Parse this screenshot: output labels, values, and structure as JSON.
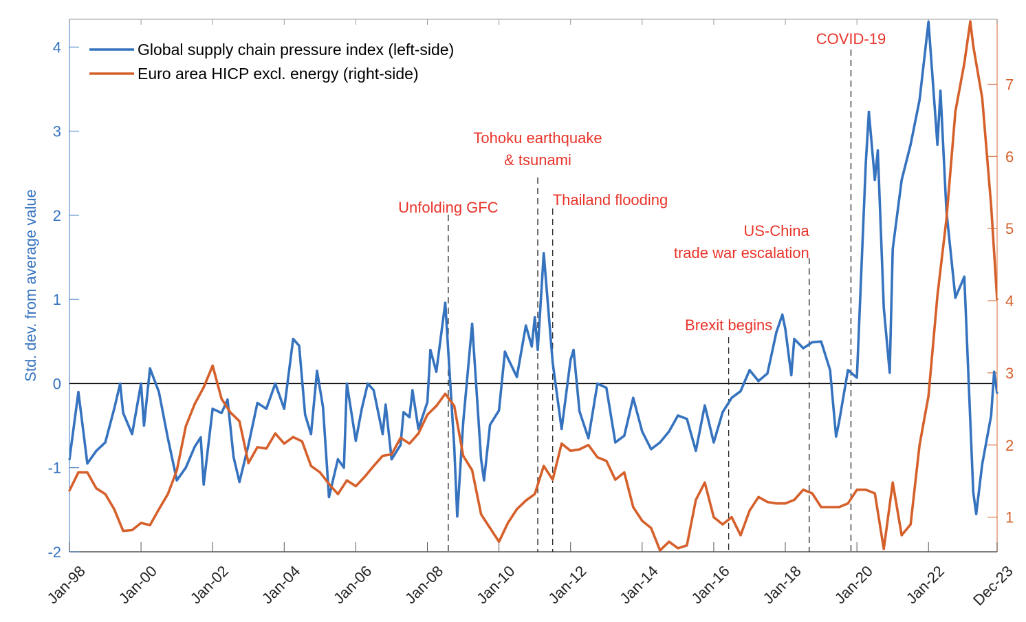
{
  "chart_data": {
    "type": "line",
    "title": "",
    "xlabel": "",
    "ylabel_left": "Std. dev. from average value",
    "ylabel_right": "",
    "ylim_left": [
      -2,
      4.33
    ],
    "ylim_right": [
      0.52,
      7.9
    ],
    "xlim": [
      "1998-01",
      "2023-12"
    ],
    "grid": false,
    "legend_position": "top-left",
    "zero_line": true,
    "x_tick_labels": [
      "Jan-98",
      "Jan-00",
      "Jan-02",
      "Jan-04",
      "Jan-06",
      "Jan-08",
      "Jan-10",
      "Jan-12",
      "Jan-14",
      "Jan-16",
      "Jan-18",
      "Jan-20",
      "Jan-22",
      "Dec-23"
    ],
    "x_ticks": [
      "1998-01",
      "2000-01",
      "2002-01",
      "2004-01",
      "2006-01",
      "2008-01",
      "2010-01",
      "2012-01",
      "2014-01",
      "2016-01",
      "2018-01",
      "2020-01",
      "2022-01",
      "2023-12"
    ],
    "y_ticks_left": [
      -2,
      -1,
      0,
      1,
      2,
      3,
      4
    ],
    "y_ticks_right": [
      1,
      2,
      3,
      4,
      5,
      6,
      7
    ],
    "colors": {
      "left_series": "#3673bf",
      "right_series": "#d5602b",
      "annotation": "#e8342a",
      "axis": "#555555"
    },
    "series": [
      {
        "name": "Global supply chain pressure index (left-side)",
        "axis": "left",
        "points": [
          [
            "1998-01",
            -0.9
          ],
          [
            "1998-04",
            -0.1
          ],
          [
            "1998-07",
            -0.95
          ],
          [
            "1998-10",
            -0.8
          ],
          [
            "1999-01",
            -0.7
          ],
          [
            "1999-04",
            -0.3
          ],
          [
            "1999-06",
            0.0
          ],
          [
            "1999-07",
            -0.35
          ],
          [
            "1999-10",
            -0.6
          ],
          [
            "2000-01",
            0.0
          ],
          [
            "2000-02",
            -0.5
          ],
          [
            "2000-04",
            0.18
          ],
          [
            "2000-07",
            -0.1
          ],
          [
            "2000-10",
            -0.65
          ],
          [
            "2001-01",
            -1.15
          ],
          [
            "2001-04",
            -1.0
          ],
          [
            "2001-07",
            -0.75
          ],
          [
            "2001-09",
            -0.64
          ],
          [
            "2001-10",
            -1.2
          ],
          [
            "2002-01",
            -0.3
          ],
          [
            "2002-04",
            -0.35
          ],
          [
            "2002-06",
            -0.19
          ],
          [
            "2002-08",
            -0.87
          ],
          [
            "2002-10",
            -1.17
          ],
          [
            "2003-01",
            -0.73
          ],
          [
            "2003-04",
            -0.23
          ],
          [
            "2003-07",
            -0.3
          ],
          [
            "2003-10",
            0.0
          ],
          [
            "2004-01",
            -0.3
          ],
          [
            "2004-04",
            0.53
          ],
          [
            "2004-06",
            0.45
          ],
          [
            "2004-08",
            -0.37
          ],
          [
            "2004-10",
            -0.6
          ],
          [
            "2004-12",
            0.15
          ],
          [
            "2005-02",
            -0.28
          ],
          [
            "2005-04",
            -1.35
          ],
          [
            "2005-07",
            -0.9
          ],
          [
            "2005-09",
            -1.0
          ],
          [
            "2005-10",
            0.0
          ],
          [
            "2006-01",
            -0.68
          ],
          [
            "2006-03",
            -0.3
          ],
          [
            "2006-05",
            0.0
          ],
          [
            "2006-07",
            -0.08
          ],
          [
            "2006-10",
            -0.6
          ],
          [
            "2006-11",
            -0.25
          ],
          [
            "2007-01",
            -0.9
          ],
          [
            "2007-04",
            -0.73
          ],
          [
            "2007-05",
            -0.34
          ],
          [
            "2007-07",
            -0.4
          ],
          [
            "2007-08",
            -0.08
          ],
          [
            "2007-10",
            -0.54
          ],
          [
            "2008-01",
            -0.22
          ],
          [
            "2008-02",
            0.4
          ],
          [
            "2008-04",
            0.14
          ],
          [
            "2008-07",
            0.96
          ],
          [
            "2008-10",
            -0.76
          ],
          [
            "2008-11",
            -1.58
          ],
          [
            "2009-01",
            -0.46
          ],
          [
            "2009-04",
            0.71
          ],
          [
            "2009-07",
            -0.9
          ],
          [
            "2009-08",
            -1.15
          ],
          [
            "2009-10",
            -0.49
          ],
          [
            "2010-01",
            -0.32
          ],
          [
            "2010-03",
            0.38
          ],
          [
            "2010-04",
            0.3
          ],
          [
            "2010-07",
            0.08
          ],
          [
            "2010-10",
            0.69
          ],
          [
            "2010-12",
            0.44
          ],
          [
            "2011-01",
            0.79
          ],
          [
            "2011-02",
            0.4
          ],
          [
            "2011-04",
            1.55
          ],
          [
            "2011-07",
            0.25
          ],
          [
            "2011-10",
            -0.54
          ],
          [
            "2012-01",
            0.28
          ],
          [
            "2012-02",
            0.4
          ],
          [
            "2012-04",
            -0.33
          ],
          [
            "2012-07",
            -0.65
          ],
          [
            "2012-10",
            0.0
          ],
          [
            "2013-01",
            -0.05
          ],
          [
            "2013-04",
            -0.7
          ],
          [
            "2013-07",
            -0.62
          ],
          [
            "2013-10",
            -0.17
          ],
          [
            "2014-01",
            -0.57
          ],
          [
            "2014-04",
            -0.78
          ],
          [
            "2014-07",
            -0.7
          ],
          [
            "2014-10",
            -0.57
          ],
          [
            "2015-01",
            -0.38
          ],
          [
            "2015-04",
            -0.42
          ],
          [
            "2015-07",
            -0.8
          ],
          [
            "2015-10",
            -0.26
          ],
          [
            "2016-01",
            -0.7
          ],
          [
            "2016-04",
            -0.34
          ],
          [
            "2016-07",
            -0.17
          ],
          [
            "2016-10",
            -0.09
          ],
          [
            "2017-01",
            0.16
          ],
          [
            "2017-04",
            0.03
          ],
          [
            "2017-07",
            0.12
          ],
          [
            "2017-10",
            0.61
          ],
          [
            "2017-12",
            0.82
          ],
          [
            "2018-01",
            0.65
          ],
          [
            "2018-03",
            0.1
          ],
          [
            "2018-04",
            0.53
          ],
          [
            "2018-07",
            0.42
          ],
          [
            "2018-10",
            0.49
          ],
          [
            "2019-01",
            0.5
          ],
          [
            "2019-04",
            0.16
          ],
          [
            "2019-06",
            -0.63
          ],
          [
            "2019-07",
            -0.46
          ],
          [
            "2019-10",
            0.16
          ],
          [
            "2020-01",
            0.07
          ],
          [
            "2020-04",
            2.63
          ],
          [
            "2020-05",
            3.23
          ],
          [
            "2020-07",
            2.42
          ],
          [
            "2020-08",
            2.77
          ],
          [
            "2020-10",
            0.9
          ],
          [
            "2020-12",
            0.13
          ],
          [
            "2021-01",
            1.6
          ],
          [
            "2021-04",
            2.42
          ],
          [
            "2021-07",
            2.84
          ],
          [
            "2021-10",
            3.37
          ],
          [
            "2022-01",
            4.3
          ],
          [
            "2022-04",
            2.84
          ],
          [
            "2022-05",
            3.48
          ],
          [
            "2022-07",
            2.05
          ],
          [
            "2022-10",
            1.02
          ],
          [
            "2023-01",
            1.27
          ],
          [
            "2023-04",
            -1.29
          ],
          [
            "2023-05",
            -1.55
          ],
          [
            "2023-07",
            -0.96
          ],
          [
            "2023-10",
            -0.38
          ],
          [
            "2023-11",
            0.14
          ],
          [
            "2023-12",
            -0.11
          ]
        ]
      },
      {
        "name": "Euro area HICP excl. energy (right-side)",
        "axis": "right",
        "points": [
          [
            "1998-01",
            1.37
          ],
          [
            "1998-04",
            1.62
          ],
          [
            "1998-07",
            1.62
          ],
          [
            "1998-10",
            1.4
          ],
          [
            "1999-01",
            1.32
          ],
          [
            "1999-04",
            1.11
          ],
          [
            "1999-07",
            0.81
          ],
          [
            "1999-10",
            0.82
          ],
          [
            "2000-01",
            0.92
          ],
          [
            "2000-04",
            0.89
          ],
          [
            "2000-07",
            1.11
          ],
          [
            "2000-10",
            1.32
          ],
          [
            "2001-01",
            1.65
          ],
          [
            "2001-04",
            2.26
          ],
          [
            "2001-07",
            2.57
          ],
          [
            "2001-10",
            2.8
          ],
          [
            "2002-01",
            3.1
          ],
          [
            "2002-04",
            2.64
          ],
          [
            "2002-07",
            2.45
          ],
          [
            "2002-10",
            2.33
          ],
          [
            "2003-01",
            1.75
          ],
          [
            "2003-04",
            1.97
          ],
          [
            "2003-07",
            1.95
          ],
          [
            "2003-10",
            2.16
          ],
          [
            "2004-01",
            2.02
          ],
          [
            "2004-04",
            2.11
          ],
          [
            "2004-07",
            2.05
          ],
          [
            "2004-10",
            1.71
          ],
          [
            "2005-01",
            1.62
          ],
          [
            "2005-04",
            1.46
          ],
          [
            "2005-07",
            1.32
          ],
          [
            "2005-10",
            1.51
          ],
          [
            "2006-01",
            1.43
          ],
          [
            "2006-04",
            1.56
          ],
          [
            "2006-07",
            1.71
          ],
          [
            "2006-10",
            1.85
          ],
          [
            "2007-01",
            1.87
          ],
          [
            "2007-04",
            2.1
          ],
          [
            "2007-07",
            2.02
          ],
          [
            "2007-10",
            2.16
          ],
          [
            "2008-01",
            2.42
          ],
          [
            "2008-04",
            2.54
          ],
          [
            "2008-07",
            2.71
          ],
          [
            "2008-10",
            2.54
          ],
          [
            "2009-01",
            1.85
          ],
          [
            "2009-04",
            1.65
          ],
          [
            "2009-07",
            1.04
          ],
          [
            "2009-10",
            0.85
          ],
          [
            "2010-01",
            0.66
          ],
          [
            "2010-04",
            0.92
          ],
          [
            "2010-07",
            1.11
          ],
          [
            "2010-10",
            1.23
          ],
          [
            "2011-01",
            1.32
          ],
          [
            "2011-04",
            1.71
          ],
          [
            "2011-07",
            1.52
          ],
          [
            "2011-10",
            2.02
          ],
          [
            "2012-01",
            1.92
          ],
          [
            "2012-04",
            1.94
          ],
          [
            "2012-07",
            2.0
          ],
          [
            "2012-10",
            1.83
          ],
          [
            "2013-01",
            1.78
          ],
          [
            "2013-04",
            1.52
          ],
          [
            "2013-07",
            1.62
          ],
          [
            "2013-10",
            1.14
          ],
          [
            "2014-01",
            0.95
          ],
          [
            "2014-04",
            0.85
          ],
          [
            "2014-07",
            0.54
          ],
          [
            "2014-10",
            0.66
          ],
          [
            "2015-01",
            0.57
          ],
          [
            "2015-04",
            0.61
          ],
          [
            "2015-07",
            1.24
          ],
          [
            "2015-10",
            1.48
          ],
          [
            "2016-01",
            1.0
          ],
          [
            "2016-04",
            0.9
          ],
          [
            "2016-07",
            1.0
          ],
          [
            "2016-10",
            0.75
          ],
          [
            "2017-01",
            1.09
          ],
          [
            "2017-04",
            1.28
          ],
          [
            "2017-07",
            1.21
          ],
          [
            "2017-10",
            1.19
          ],
          [
            "2018-01",
            1.19
          ],
          [
            "2018-04",
            1.24
          ],
          [
            "2018-07",
            1.38
          ],
          [
            "2018-10",
            1.33
          ],
          [
            "2019-01",
            1.14
          ],
          [
            "2019-04",
            1.14
          ],
          [
            "2019-07",
            1.14
          ],
          [
            "2019-10",
            1.19
          ],
          [
            "2020-01",
            1.38
          ],
          [
            "2020-04",
            1.38
          ],
          [
            "2020-07",
            1.33
          ],
          [
            "2020-10",
            0.56
          ],
          [
            "2021-01",
            1.48
          ],
          [
            "2021-04",
            0.75
          ],
          [
            "2021-07",
            0.9
          ],
          [
            "2021-10",
            2.0
          ],
          [
            "2022-01",
            2.68
          ],
          [
            "2022-04",
            4.07
          ],
          [
            "2022-07",
            5.13
          ],
          [
            "2022-10",
            6.62
          ],
          [
            "2023-01",
            7.29
          ],
          [
            "2023-03",
            7.87
          ],
          [
            "2023-04",
            7.53
          ],
          [
            "2023-07",
            6.81
          ],
          [
            "2023-10",
            5.32
          ],
          [
            "2023-12",
            4.02
          ]
        ]
      }
    ],
    "annotations": [
      {
        "date": "2008-08",
        "lines": [
          "Unfolding GFC"
        ]
      },
      {
        "date": "2011-02",
        "lines": [
          "Tohoku earthquake",
          "& tsunami"
        ]
      },
      {
        "date": "2011-07",
        "lines": [
          "Thailand flooding"
        ]
      },
      {
        "date": "2016-06",
        "lines": [
          "Brexit begins"
        ]
      },
      {
        "date": "2018-09",
        "lines": [
          "US-China",
          "trade war escalation"
        ]
      },
      {
        "date": "2019-11",
        "lines": [
          "COVID-19"
        ]
      }
    ]
  }
}
